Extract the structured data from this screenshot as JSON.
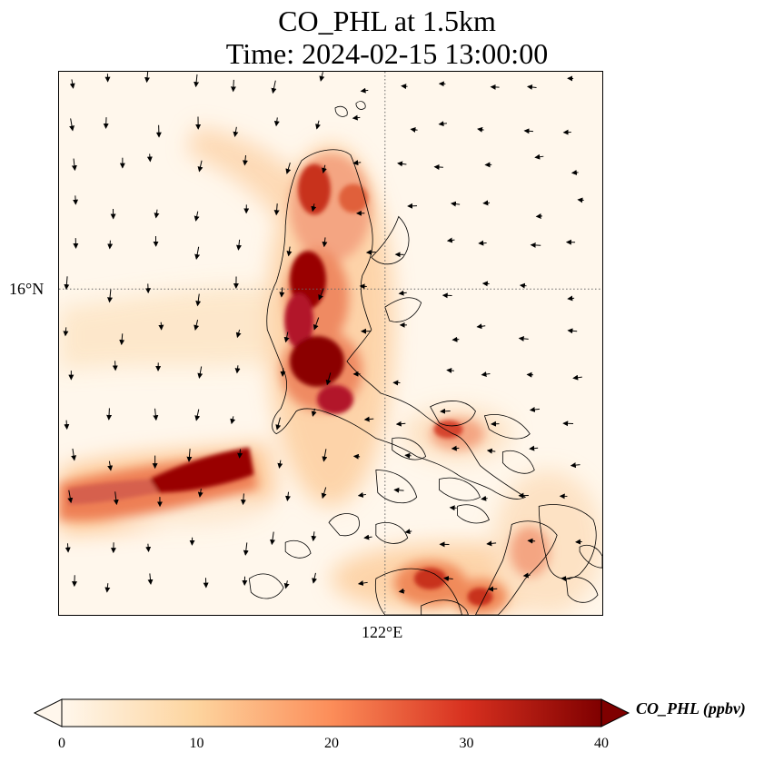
{
  "title": {
    "line1": "CO_PHL at 1.5km",
    "line2": "Time: 2024-02-15 13:00:00"
  },
  "map": {
    "variable": "CO_PHL",
    "level": "1.5km",
    "gridlines": {
      "latitude_label": "16°N",
      "longitude_label": "122°E",
      "style": "dotted"
    },
    "overlay": "wind vectors",
    "colormap": "OrRd"
  },
  "colorbar": {
    "label": "CO_PHL (ppbv)",
    "ticks": [
      "0",
      "10",
      "20",
      "30",
      "40"
    ],
    "min": 0,
    "max": 40,
    "extend": "both",
    "colors": [
      "#fff7ec",
      "#fdd49e",
      "#fc8d59",
      "#d7301f",
      "#7f0000"
    ]
  }
}
